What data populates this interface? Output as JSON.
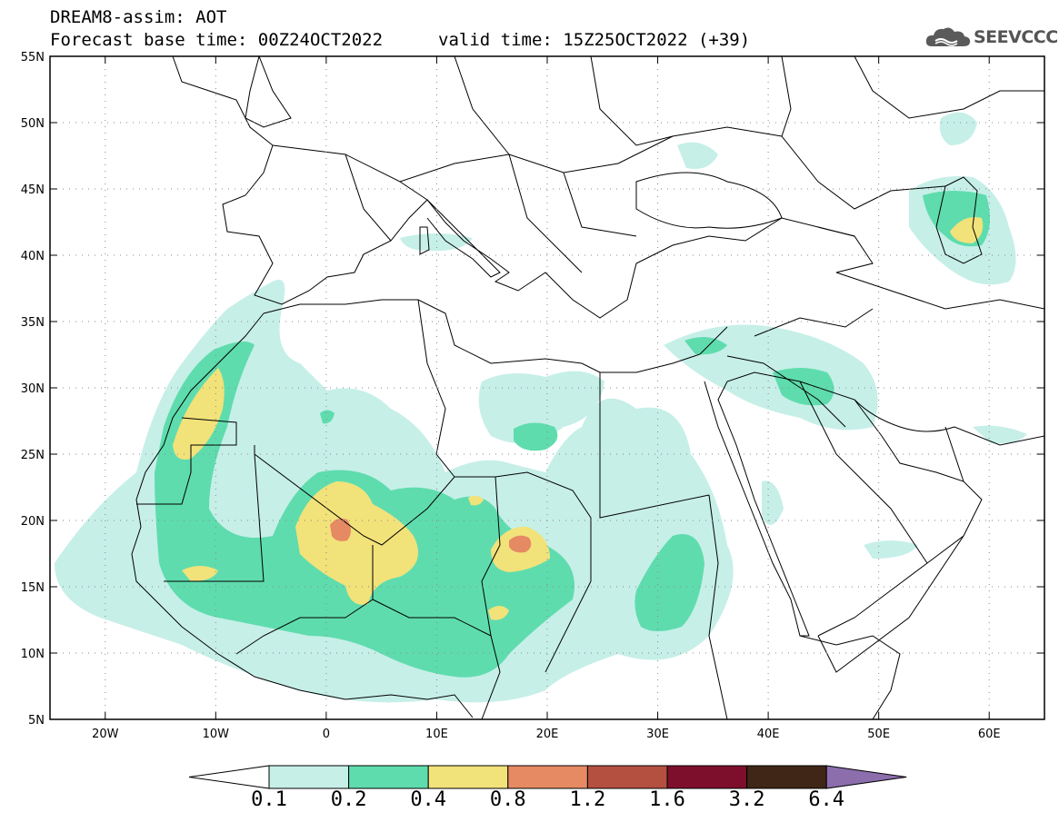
{
  "header": {
    "title": "DREAM8-assim: AOT",
    "base_time": "Forecast base time: 00Z24OCT2022",
    "valid_time": "valid time: 15Z25OCT2022 (+39)"
  },
  "logo": {
    "text": "SEEVCCC",
    "icon": "cloud-icon"
  },
  "map": {
    "lon_range": [
      -25,
      65
    ],
    "lat_range": [
      5,
      55
    ],
    "lon_labels": [
      "20W",
      "10W",
      "0",
      "10E",
      "20E",
      "30E",
      "40E",
      "50E",
      "60E"
    ],
    "lat_labels": [
      "55N",
      "50N",
      "45N",
      "40N",
      "35N",
      "30N",
      "25N",
      "20N",
      "15N",
      "10N",
      "5N"
    ]
  },
  "colorbar": {
    "levels": [
      "0.1",
      "0.2",
      "0.4",
      "0.8",
      "1.2",
      "1.6",
      "3.2",
      "6.4"
    ],
    "colors": [
      "#c6efe8",
      "#5fdcae",
      "#f2e27a",
      "#e68a64",
      "#b4503f",
      "#7d0f2d",
      "#3f2616",
      "#8c6eac"
    ],
    "under_color": "#ffffff"
  }
}
